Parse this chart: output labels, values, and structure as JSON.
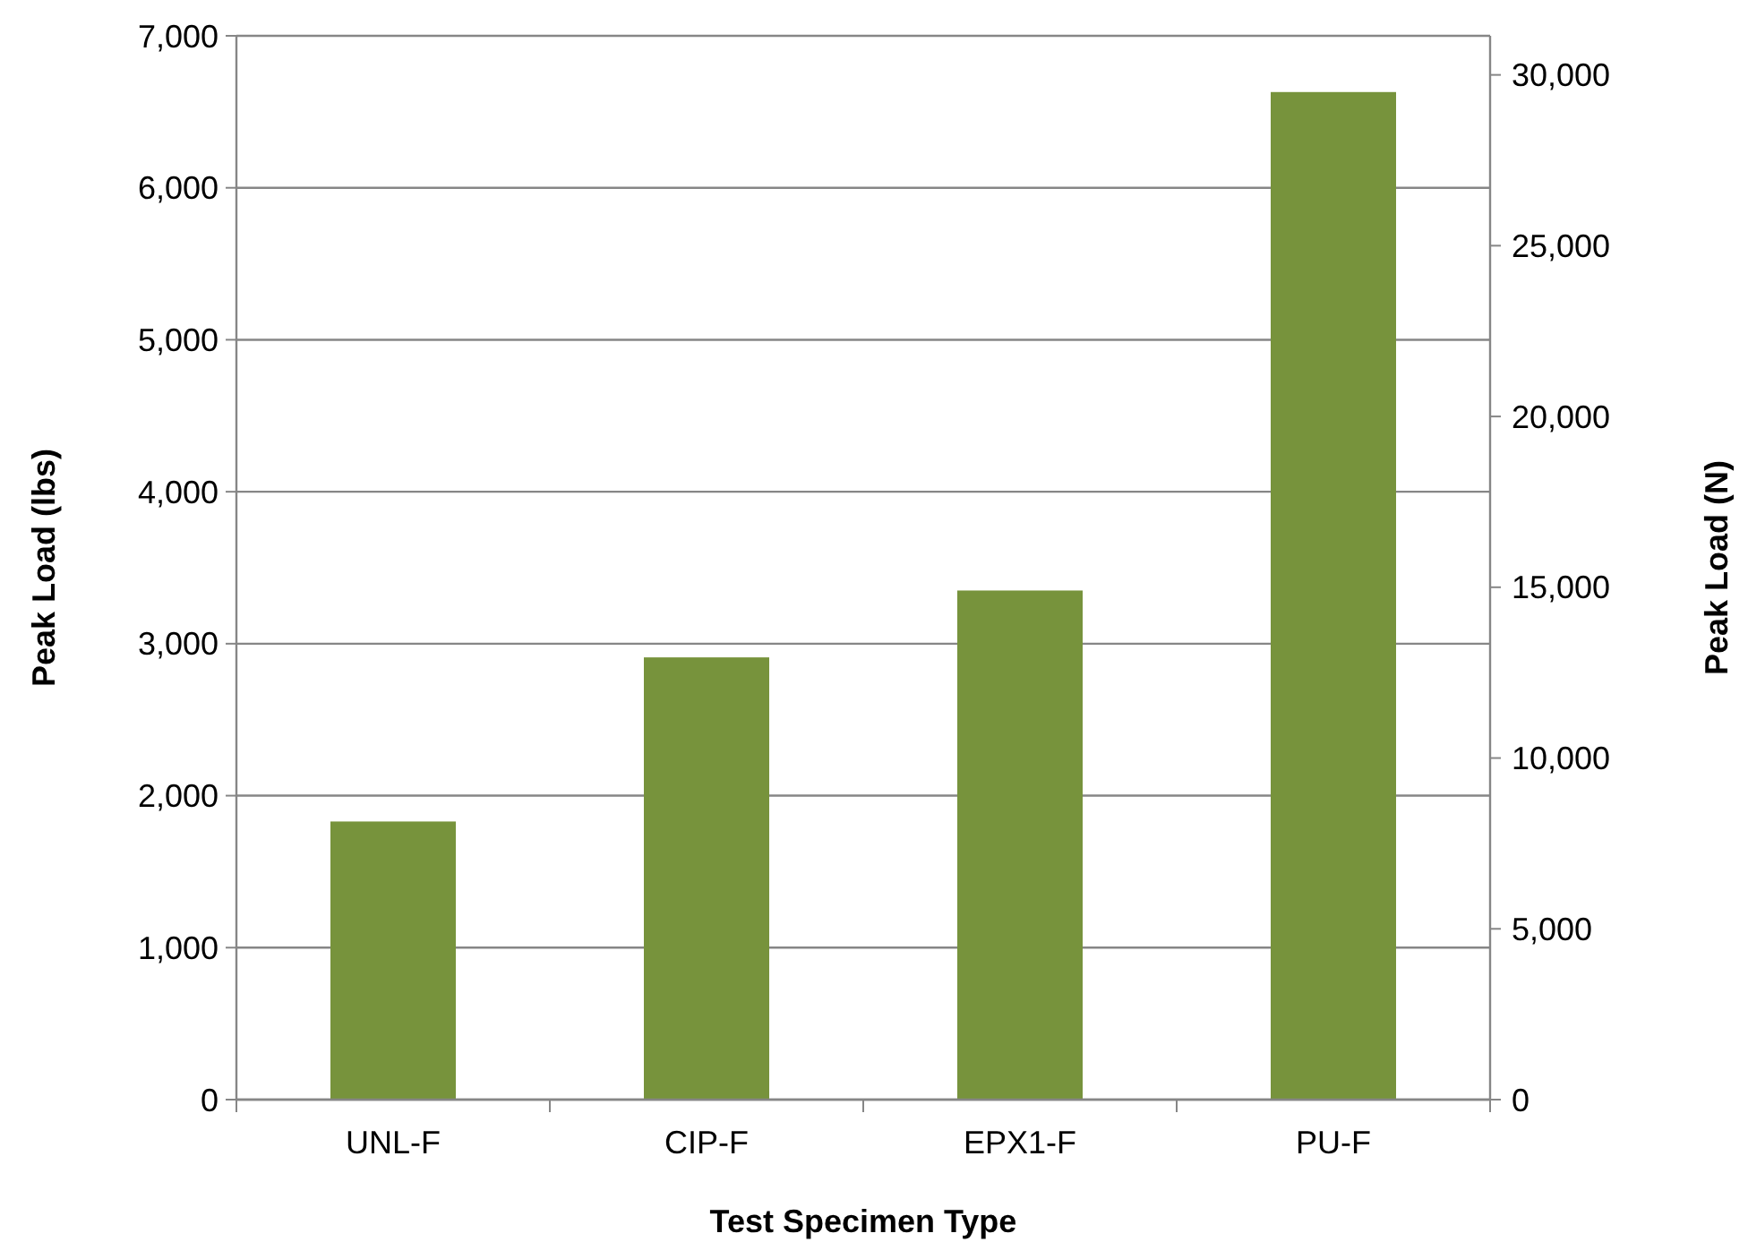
{
  "chart_data": {
    "type": "bar",
    "categories": [
      "UNL-F",
      "CIP-F",
      "EPX1-F",
      "PU-F"
    ],
    "values": [
      1830,
      2910,
      3350,
      6630
    ],
    "color": "#77933c",
    "xlabel": "Test Specimen Type",
    "ylabel": "Peak Load (lbs)",
    "y2label": "Peak Load (N)",
    "ylim": [
      0,
      7000
    ],
    "yticks": [
      {
        "value": 0,
        "label": "0"
      },
      {
        "value": 1000,
        "label": "1,000"
      },
      {
        "value": 2000,
        "label": "2,000"
      },
      {
        "value": 3000,
        "label": "3,000"
      },
      {
        "value": 4000,
        "label": "4,000"
      },
      {
        "value": 5000,
        "label": "5,000"
      },
      {
        "value": 6000,
        "label": "6,000"
      },
      {
        "value": 7000,
        "label": "7,000"
      }
    ],
    "y2lim": [
      0,
      31144
    ],
    "y2ticks": [
      {
        "value": 0,
        "label": "0"
      },
      {
        "value": 5000,
        "label": "5,000"
      },
      {
        "value": 10000,
        "label": "10,000"
      },
      {
        "value": 15000,
        "label": "15,000"
      },
      {
        "value": 20000,
        "label": "20,000"
      },
      {
        "value": 25000,
        "label": "25,000"
      },
      {
        "value": 30000,
        "label": "30,000"
      }
    ],
    "grid": "y"
  }
}
